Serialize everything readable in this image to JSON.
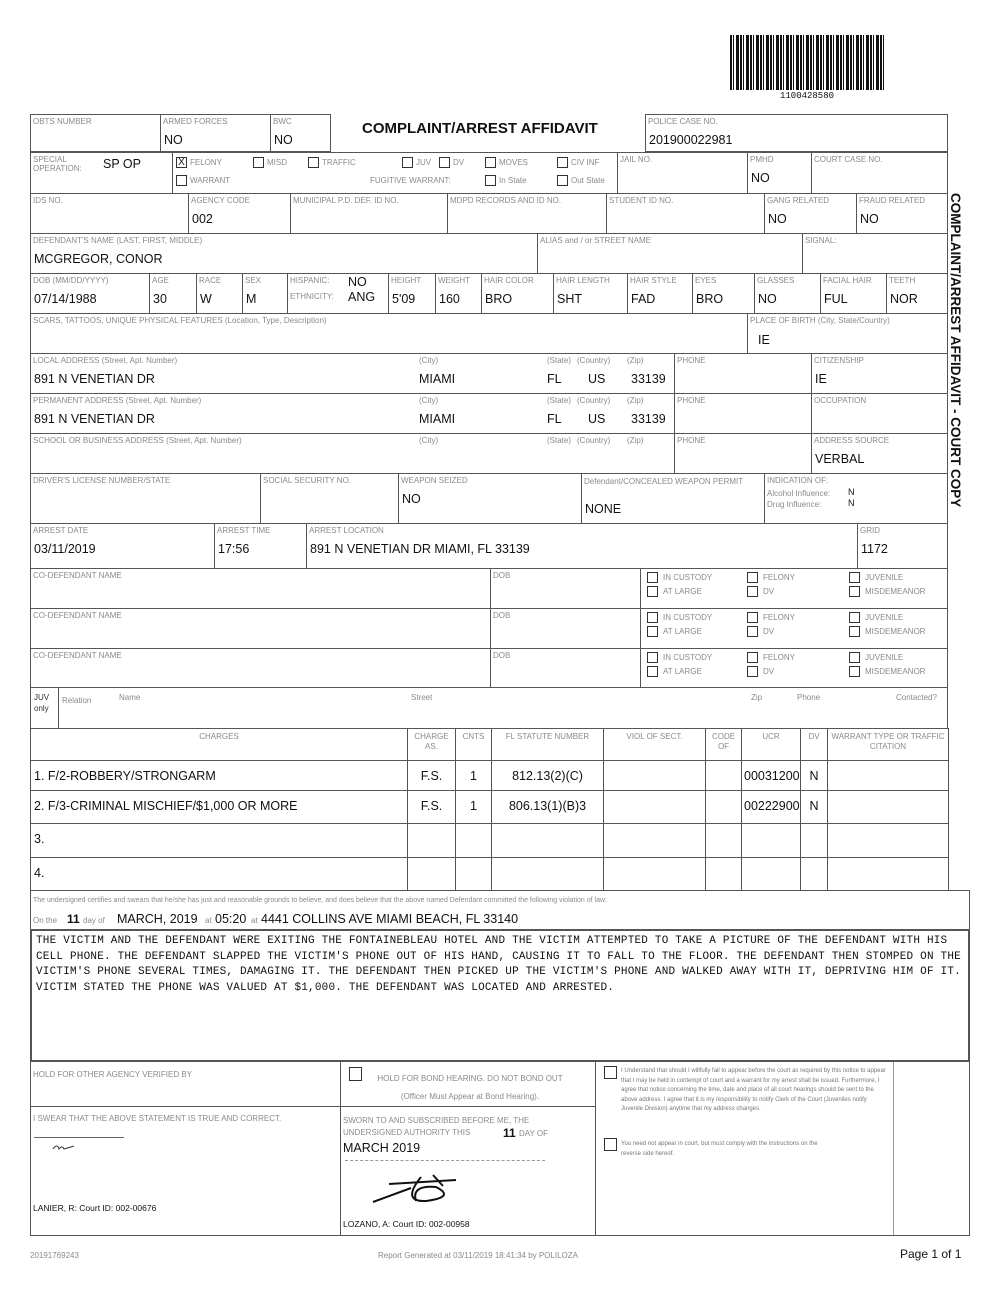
{
  "barcode": {
    "number": "1100428580"
  },
  "title": "COMPLAINT/ARREST AFFIDAVIT",
  "side_label": "COMPLAINT/ARREST AFFIDAVIT - COURT COPY",
  "row1": {
    "obts": {
      "label": "OBTS NUMBER",
      "value": ""
    },
    "armed": {
      "label": "ARMED FORCES",
      "value": "NO"
    },
    "bwc": {
      "label": "BWC",
      "value": "NO"
    },
    "police_case": {
      "label": "POLICE CASE NO.",
      "value": "201900022981"
    }
  },
  "row2": {
    "special": {
      "label": "SPECIAL OPERATION:",
      "value": "SP OP"
    },
    "checks": {
      "felony": "FELONY",
      "felony_mark": "X",
      "misd": "MISD",
      "traffic": "TRAFFIC",
      "juv": "JUV",
      "dv": "DV",
      "moves": "MOVES",
      "civinf": "CIV INF",
      "warrant": "WARRANT",
      "fugitive": "FUGITIVE WARRANT:",
      "in_state": "In State",
      "out_state": "Out State"
    },
    "jail": {
      "label": "JAIL NO.",
      "value": ""
    },
    "pmhd": {
      "label": "PMHD",
      "value": "NO"
    },
    "court_case": {
      "label": "COURT CASE NO.",
      "value": ""
    }
  },
  "row3": {
    "ids": {
      "label": "IDS NO.",
      "value": ""
    },
    "agency": {
      "label": "AGENCY CODE",
      "value": "002"
    },
    "municipal": {
      "label": "MUNICIPAL P.D. DEF. ID NO.",
      "value": ""
    },
    "mdpd": {
      "label": "MDPD RECORDS AND ID NO.",
      "value": ""
    },
    "student": {
      "label": "STUDENT ID NO.",
      "value": ""
    },
    "gang": {
      "label": "GANG RELATED",
      "value": "NO"
    },
    "fraud": {
      "label": "FRAUD RELATED",
      "value": "NO"
    }
  },
  "row4": {
    "name": {
      "label": "DEFENDANT'S NAME (LAST, FIRST, MIDDLE)",
      "value": "MCGREGOR, CONOR"
    },
    "alias": {
      "label": "ALIAS and / or STREET NAME",
      "value": ""
    },
    "signal": {
      "label": "SIGNAL:",
      "value": ""
    }
  },
  "row5": {
    "dob": {
      "label": "DOB (MM/DD/YYYY)",
      "value": "07/14/1988"
    },
    "age": {
      "label": "AGE",
      "value": "30"
    },
    "race": {
      "label": "RACE",
      "value": "W"
    },
    "sex": {
      "label": "SEX",
      "value": "M"
    },
    "hispanic": {
      "label": "HISPANIC:",
      "value": "NO"
    },
    "ethnicity": {
      "label": "ETHNICITY:",
      "value": "ANG"
    },
    "height": {
      "label": "HEIGHT",
      "value": "5'09"
    },
    "weight": {
      "label": "WEIGHT",
      "value": "160"
    },
    "hair_color": {
      "label": "HAIR COLOR",
      "value": "BRO"
    },
    "hair_length": {
      "label": "HAIR LENGTH",
      "value": "SHT"
    },
    "hair_style": {
      "label": "HAIR STYLE",
      "value": "FAD"
    },
    "eyes": {
      "label": "EYES",
      "value": "BRO"
    },
    "glasses": {
      "label": "GLASSES",
      "value": "NO"
    },
    "facial": {
      "label": "FACIAL HAIR",
      "value": "FUL"
    },
    "teeth": {
      "label": "TEETH",
      "value": "NOR"
    }
  },
  "row6": {
    "scars": {
      "label": "SCARS, TATTOOS, UNIQUE PHYSICAL FEATURES (Location, Type, Description)",
      "value": ""
    },
    "pob": {
      "label": "PLACE OF BIRTH (City, State/Country)",
      "value": "IE"
    }
  },
  "addr_labels": {
    "city": "(City)",
    "state": "(State)",
    "country": "(Country)",
    "zip": "(Zip)",
    "phone": "PHONE"
  },
  "local": {
    "label": "LOCAL ADDRESS (Street, Apt. Number)",
    "street": "891 N VENETIAN DR",
    "city": "MIAMI",
    "state": "FL",
    "country": "US",
    "zip": "33139",
    "citizenship_label": "CITIZENSHIP",
    "citizenship": "IE"
  },
  "permanent": {
    "label": "PERMANENT ADDRESS (Street, Apt. Number)",
    "street": "891 N VENETIAN DR",
    "city": "MIAMI",
    "state": "FL",
    "country": "US",
    "zip": "33139",
    "occupation_label": "OCCUPATION",
    "occupation": ""
  },
  "school": {
    "label": "SCHOOL OR BUSINESS ADDRESS (Street, Apt. Number)",
    "address_source_label": "ADDRESS SOURCE",
    "address_source": "VERBAL"
  },
  "row10": {
    "dl": {
      "label": "DRIVER'S LICENSE NUMBER/STATE",
      "value": ""
    },
    "ssn": {
      "label": "SOCIAL SECURITY NO.",
      "value": ""
    },
    "weapon": {
      "label": "WEAPON SEIZED",
      "value": "NO"
    },
    "concealed": {
      "label": "Defendant/CONCEALED WEAPON PERMIT",
      "value": "NONE"
    },
    "indication": {
      "label": "INDICATION OF:",
      "alcohol_label": "Alcohol Influence:",
      "alcohol": "N",
      "drug_label": "Drug Influence:",
      "drug": "N"
    }
  },
  "row11": {
    "date": {
      "label": "ARREST DATE",
      "value": "03/11/2019"
    },
    "time": {
      "label": "ARREST TIME",
      "value": "17:56"
    },
    "location": {
      "label": "ARREST LOCATION",
      "value": "891 N VENETIAN DR MIAMI, FL 33139"
    },
    "grid": {
      "label": "GRID",
      "value": "1172"
    }
  },
  "codef": {
    "name_label": "CO-DEFENDANT NAME",
    "dob_label": "DOB",
    "in_custody": "IN CUSTODY",
    "at_large": "AT LARGE",
    "felony": "FELONY",
    "dv": "DV",
    "juvenile": "JUVENILE",
    "misdemeanor": "MISDEMEANOR"
  },
  "juv": {
    "juv_only": "JUV only",
    "relation": "Relation",
    "name": "Name",
    "street": "Street",
    "zip": "Zip",
    "phone": "Phone",
    "contacted": "Contacted?"
  },
  "charges": {
    "headers": [
      "CHARGES",
      "CHARGE AS.",
      "CNTS",
      "FL STATUTE NUMBER",
      "VIOL OF SECT.",
      "CODE OF",
      "UCR",
      "DV",
      "WARRANT TYPE OR TRAFFIC CITATION"
    ],
    "rows": [
      [
        "1. F/2-ROBBERY/STRONGARM",
        "F.S.",
        "1",
        "812.13(2)(C)",
        "",
        "",
        "00031200",
        "N",
        ""
      ],
      [
        "2. F/3-CRIMINAL MISCHIEF/$1,000 OR MORE",
        "F.S.",
        "1",
        "806.13(1)(B)3",
        "",
        "",
        "00222900",
        "N",
        ""
      ],
      [
        "3.",
        "",
        "",
        "",
        "",
        "",
        "",
        "",
        ""
      ],
      [
        "4.",
        "",
        "",
        "",
        "",
        "",
        "",
        "",
        ""
      ]
    ]
  },
  "cert": {
    "text": "The undersigned certifies and swears that he/she has just and reasonable grounds to believe, and does believe that the above named Defendant committed the following violation of law:",
    "on_the": "On the",
    "day": "11",
    "day_of": "day of",
    "month_year": "MARCH, 2019",
    "at1": "at",
    "time": "05:20",
    "at2": "at",
    "place": "4441 COLLINS AVE MIAMI BEACH, FL 33140"
  },
  "narrative": "THE VICTIM AND THE DEFENDANT WERE EXITING THE FONTAINEBLEAU HOTEL AND THE VICTIM ATTEMPTED TO TAKE A PICTURE OF THE DEFENDANT WITH HIS CELL PHONE. THE DEFENDANT SLAPPED THE VICTIM'S PHONE OUT OF HIS HAND, CAUSING IT TO FALL TO THE FLOOR. THE DEFENDANT THEN STOMPED ON THE VICTIM'S PHONE SEVERAL TIMES, DAMAGING IT. THE DEFENDANT THEN PICKED UP THE VICTIM'S PHONE AND WALKED AWAY WITH IT, DEPRIVING HIM OF IT. VICTIM STATED THE PHONE WAS VALUED AT $1,000. THE DEFENDANT WAS LOCATED AND ARRESTED.",
  "bottom": {
    "hold_other": "HOLD FOR OTHER AGENCY VERIFIED BY",
    "hold_bond": "HOLD FOR BOND HEARING. DO NOT BOND OUT (Officer Must Appear at Bond Hearing).",
    "swear": "I SWEAR THAT THE ABOVE STATEMENT IS TRUE AND CORRECT.",
    "officer": "LANIER, R: Court ID: 002-00676",
    "sworn": "SWORN TO AND SUBSCRIBED BEFORE ME, THE UNDERSIGNED AUTHORITY THIS",
    "sworn_day": "11",
    "sworn_dayof": "DAY OF",
    "sworn_month": "MARCH 2019",
    "authority": "LOZANO, A: Court ID: 002-00958",
    "notice1": "I Understand that should I willfully fail to appear before the court as required by this notice to appear that I may be held in contempt of court and a warrant for my arrest shall be issued. Furthermore, I agree that notice concerning the time, date and place of all court hearings should be sent to the above address. I agree that it is my responsibility to notify Clerk of the Court (Juveniles notify Juvenile Division) anytime that my address changes.",
    "notice2": "You need not appear in court, but must comply with the instructions on the reverse side hereof."
  },
  "footer": {
    "left": "20191769243",
    "center": "Report Generated at 03/11/2019 18:41:34 by POLILOZA",
    "page": "Page 1 of 1"
  }
}
